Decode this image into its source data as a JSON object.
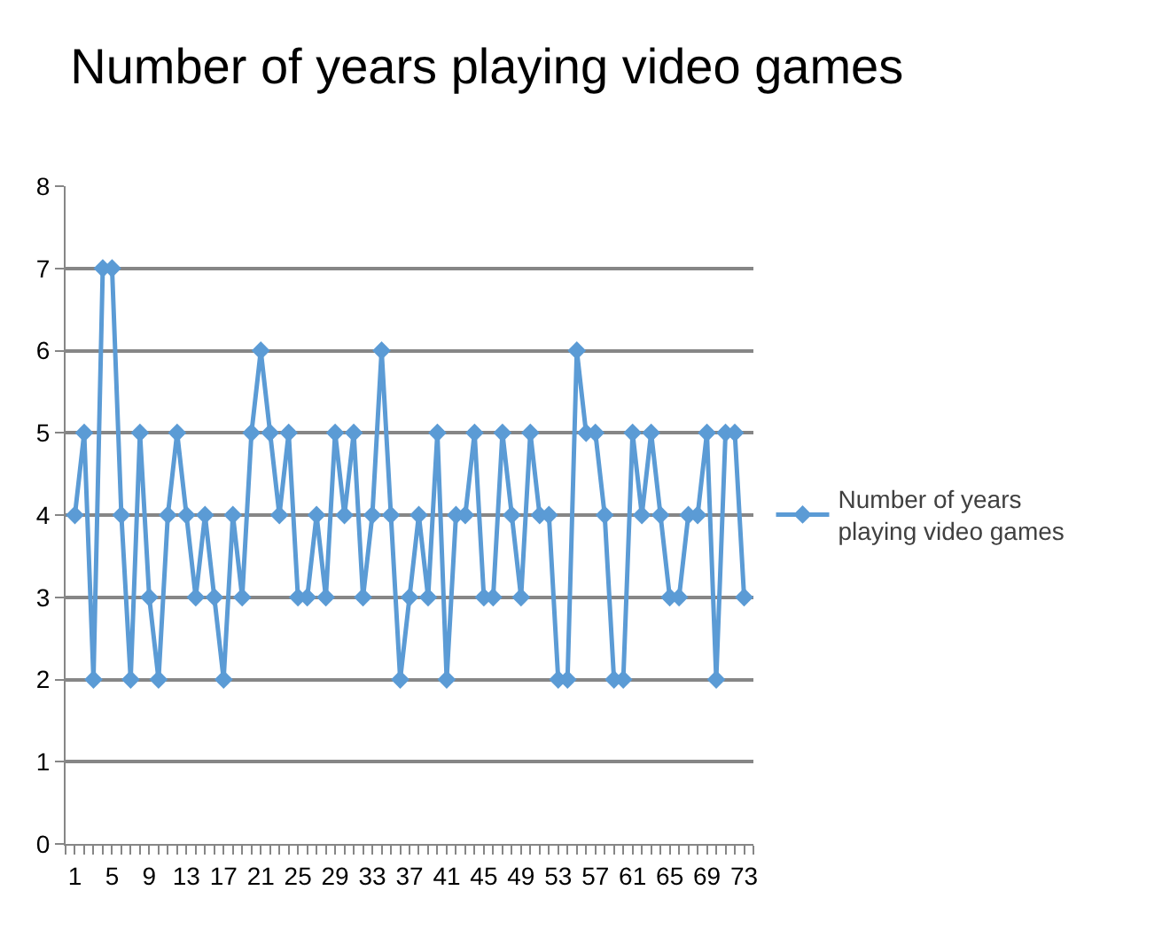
{
  "chart_data": {
    "type": "line",
    "title": "Number of years playing video games",
    "categories": [
      "1",
      null,
      null,
      null,
      "5",
      null,
      null,
      null,
      "9",
      null,
      null,
      null,
      "13",
      null,
      null,
      null,
      "17",
      null,
      null,
      null,
      "21",
      null,
      null,
      null,
      "25",
      null,
      null,
      null,
      "29",
      null,
      null,
      null,
      "33",
      null,
      null,
      null,
      "37",
      null,
      null,
      null,
      "41",
      null,
      null,
      null,
      "45",
      null,
      null,
      null,
      "49",
      null,
      null,
      null,
      "53",
      null,
      null,
      null,
      "57",
      null,
      null,
      null,
      "61",
      null,
      null,
      null,
      "65",
      null,
      null,
      null,
      "69",
      null,
      null,
      null,
      "73"
    ],
    "series": [
      {
        "name": "Number of years playing video games",
        "color": "#5b9bd5",
        "values": [
          4,
          5,
          2,
          7,
          7,
          4,
          2,
          5,
          3,
          2,
          4,
          5,
          4,
          3,
          4,
          3,
          2,
          4,
          3,
          5,
          6,
          5,
          4,
          5,
          3,
          3,
          4,
          3,
          5,
          4,
          5,
          3,
          4,
          6,
          4,
          2,
          3,
          4,
          3,
          5,
          2,
          4,
          4,
          5,
          3,
          3,
          5,
          4,
          3,
          5,
          4,
          4,
          2,
          2,
          6,
          5,
          5,
          4,
          2,
          2,
          5,
          4,
          5,
          4,
          3,
          3,
          4,
          4,
          5,
          2,
          5,
          5,
          3
        ]
      }
    ],
    "ylim": [
      0,
      8
    ],
    "yticks": [
      0,
      1,
      2,
      3,
      4,
      5,
      6,
      7,
      8
    ],
    "grid": "y",
    "legend": "right",
    "marker": "diamond",
    "line_style": "solid"
  }
}
